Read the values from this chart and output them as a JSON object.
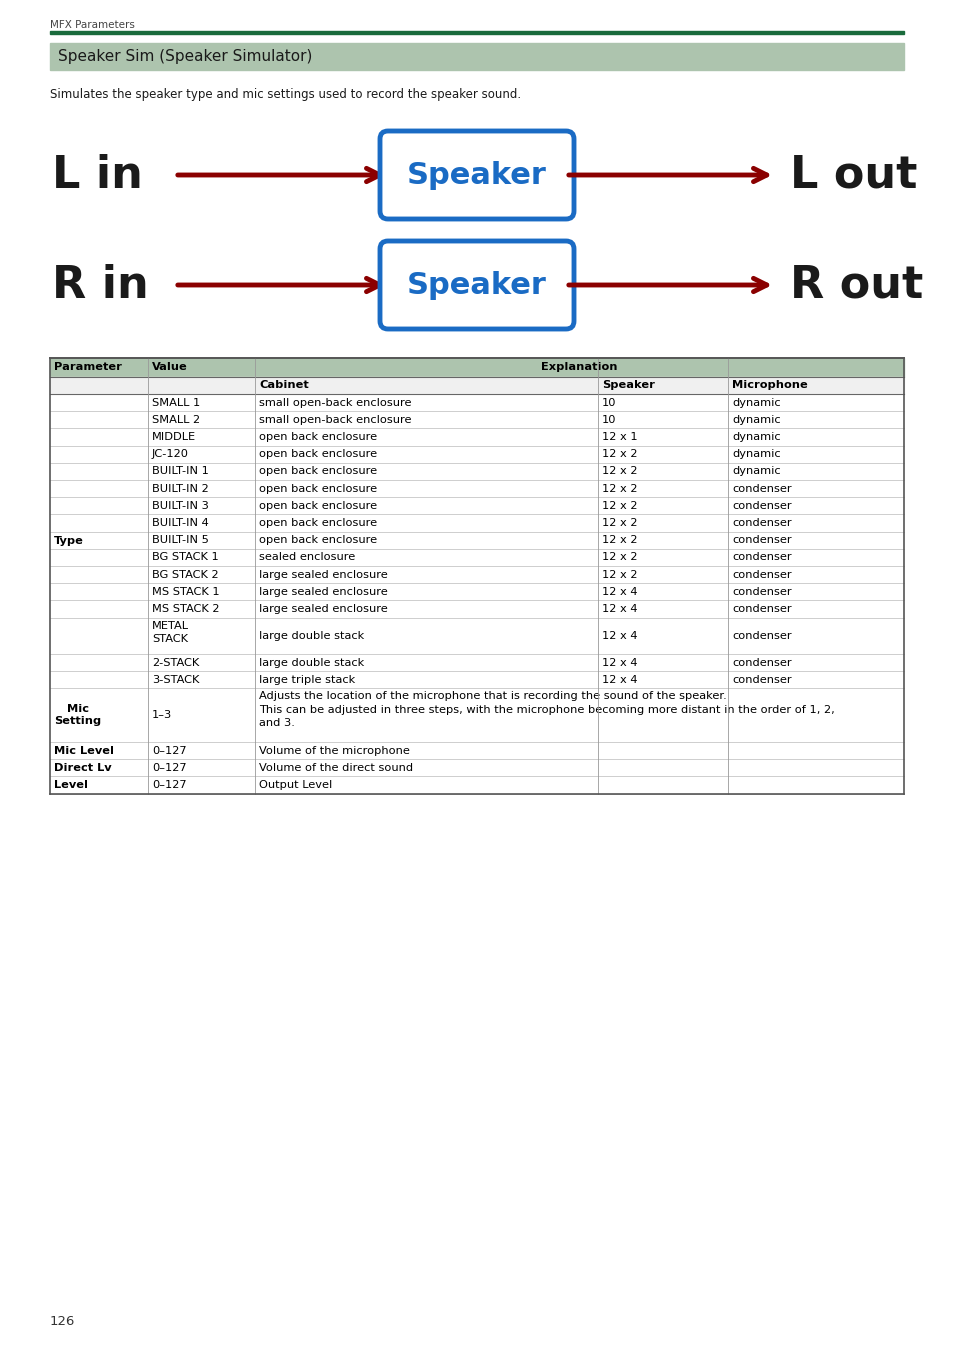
{
  "page_header": "MFX Parameters",
  "header_line_color": "#1a6b3c",
  "section_title": "Speaker Sim (Speaker Simulator)",
  "section_bg_color": "#adc4ae",
  "description": "Simulates the speaker type and mic settings used to record the speaker sound.",
  "diagram": {
    "box_fill": "#ffffff",
    "box_edge_color": "#1a6bc4",
    "box_text": "Speaker",
    "box_text_color": "#1a6bc4",
    "arrow_color": "#8b0000",
    "label_color": "#1a1a1a"
  },
  "table": {
    "header_bg": "#adc4ae",
    "sub_header_bg": "#e8e8e8",
    "type_left_bg": "#d8e8f0",
    "headers": [
      "Parameter",
      "Value",
      "Explanation",
      "",
      ""
    ],
    "sub_headers": [
      "",
      "",
      "Cabinet",
      "Speaker",
      "Microphone"
    ],
    "rows": [
      [
        "Type",
        "SMALL 1",
        "small open-back enclosure",
        "10",
        "dynamic"
      ],
      [
        "",
        "SMALL 2",
        "small open-back enclosure",
        "10",
        "dynamic"
      ],
      [
        "",
        "MIDDLE",
        "open back enclosure",
        "12 x 1",
        "dynamic"
      ],
      [
        "",
        "JC-120",
        "open back enclosure",
        "12 x 2",
        "dynamic"
      ],
      [
        "",
        "BUILT-IN 1",
        "open back enclosure",
        "12 x 2",
        "dynamic"
      ],
      [
        "",
        "BUILT-IN 2",
        "open back enclosure",
        "12 x 2",
        "condenser"
      ],
      [
        "",
        "BUILT-IN 3",
        "open back enclosure",
        "12 x 2",
        "condenser"
      ],
      [
        "",
        "BUILT-IN 4",
        "open back enclosure",
        "12 x 2",
        "condenser"
      ],
      [
        "",
        "BUILT-IN 5",
        "open back enclosure",
        "12 x 2",
        "condenser"
      ],
      [
        "",
        "BG STACK 1",
        "sealed enclosure",
        "12 x 2",
        "condenser"
      ],
      [
        "",
        "BG STACK 2",
        "large sealed enclosure",
        "12 x 2",
        "condenser"
      ],
      [
        "",
        "MS STACK 1",
        "large sealed enclosure",
        "12 x 4",
        "condenser"
      ],
      [
        "",
        "MS STACK 2",
        "large sealed enclosure",
        "12 x 4",
        "condenser"
      ],
      [
        "",
        "METAL\nSTACK",
        "large double stack",
        "12 x 4",
        "condenser"
      ],
      [
        "",
        "2-STACK",
        "large double stack",
        "12 x 4",
        "condenser"
      ],
      [
        "",
        "3-STACK",
        "large triple stack",
        "12 x 4",
        "condenser"
      ],
      [
        "Mic\nSetting",
        "1–3",
        "Adjusts the location of the microphone that is recording the sound of the speaker.\nThis can be adjusted in three steps, with the microphone becoming more distant in the order of 1, 2,\nand 3.",
        "",
        ""
      ],
      [
        "Mic Level",
        "0–127",
        "Volume of the microphone",
        "",
        ""
      ],
      [
        "Direct Lv",
        "0–127",
        "Volume of the direct sound",
        "",
        ""
      ],
      [
        "Level",
        "0–127",
        "Output Level",
        "",
        ""
      ]
    ]
  },
  "footer_page": "126",
  "bg_color": "#ffffff"
}
